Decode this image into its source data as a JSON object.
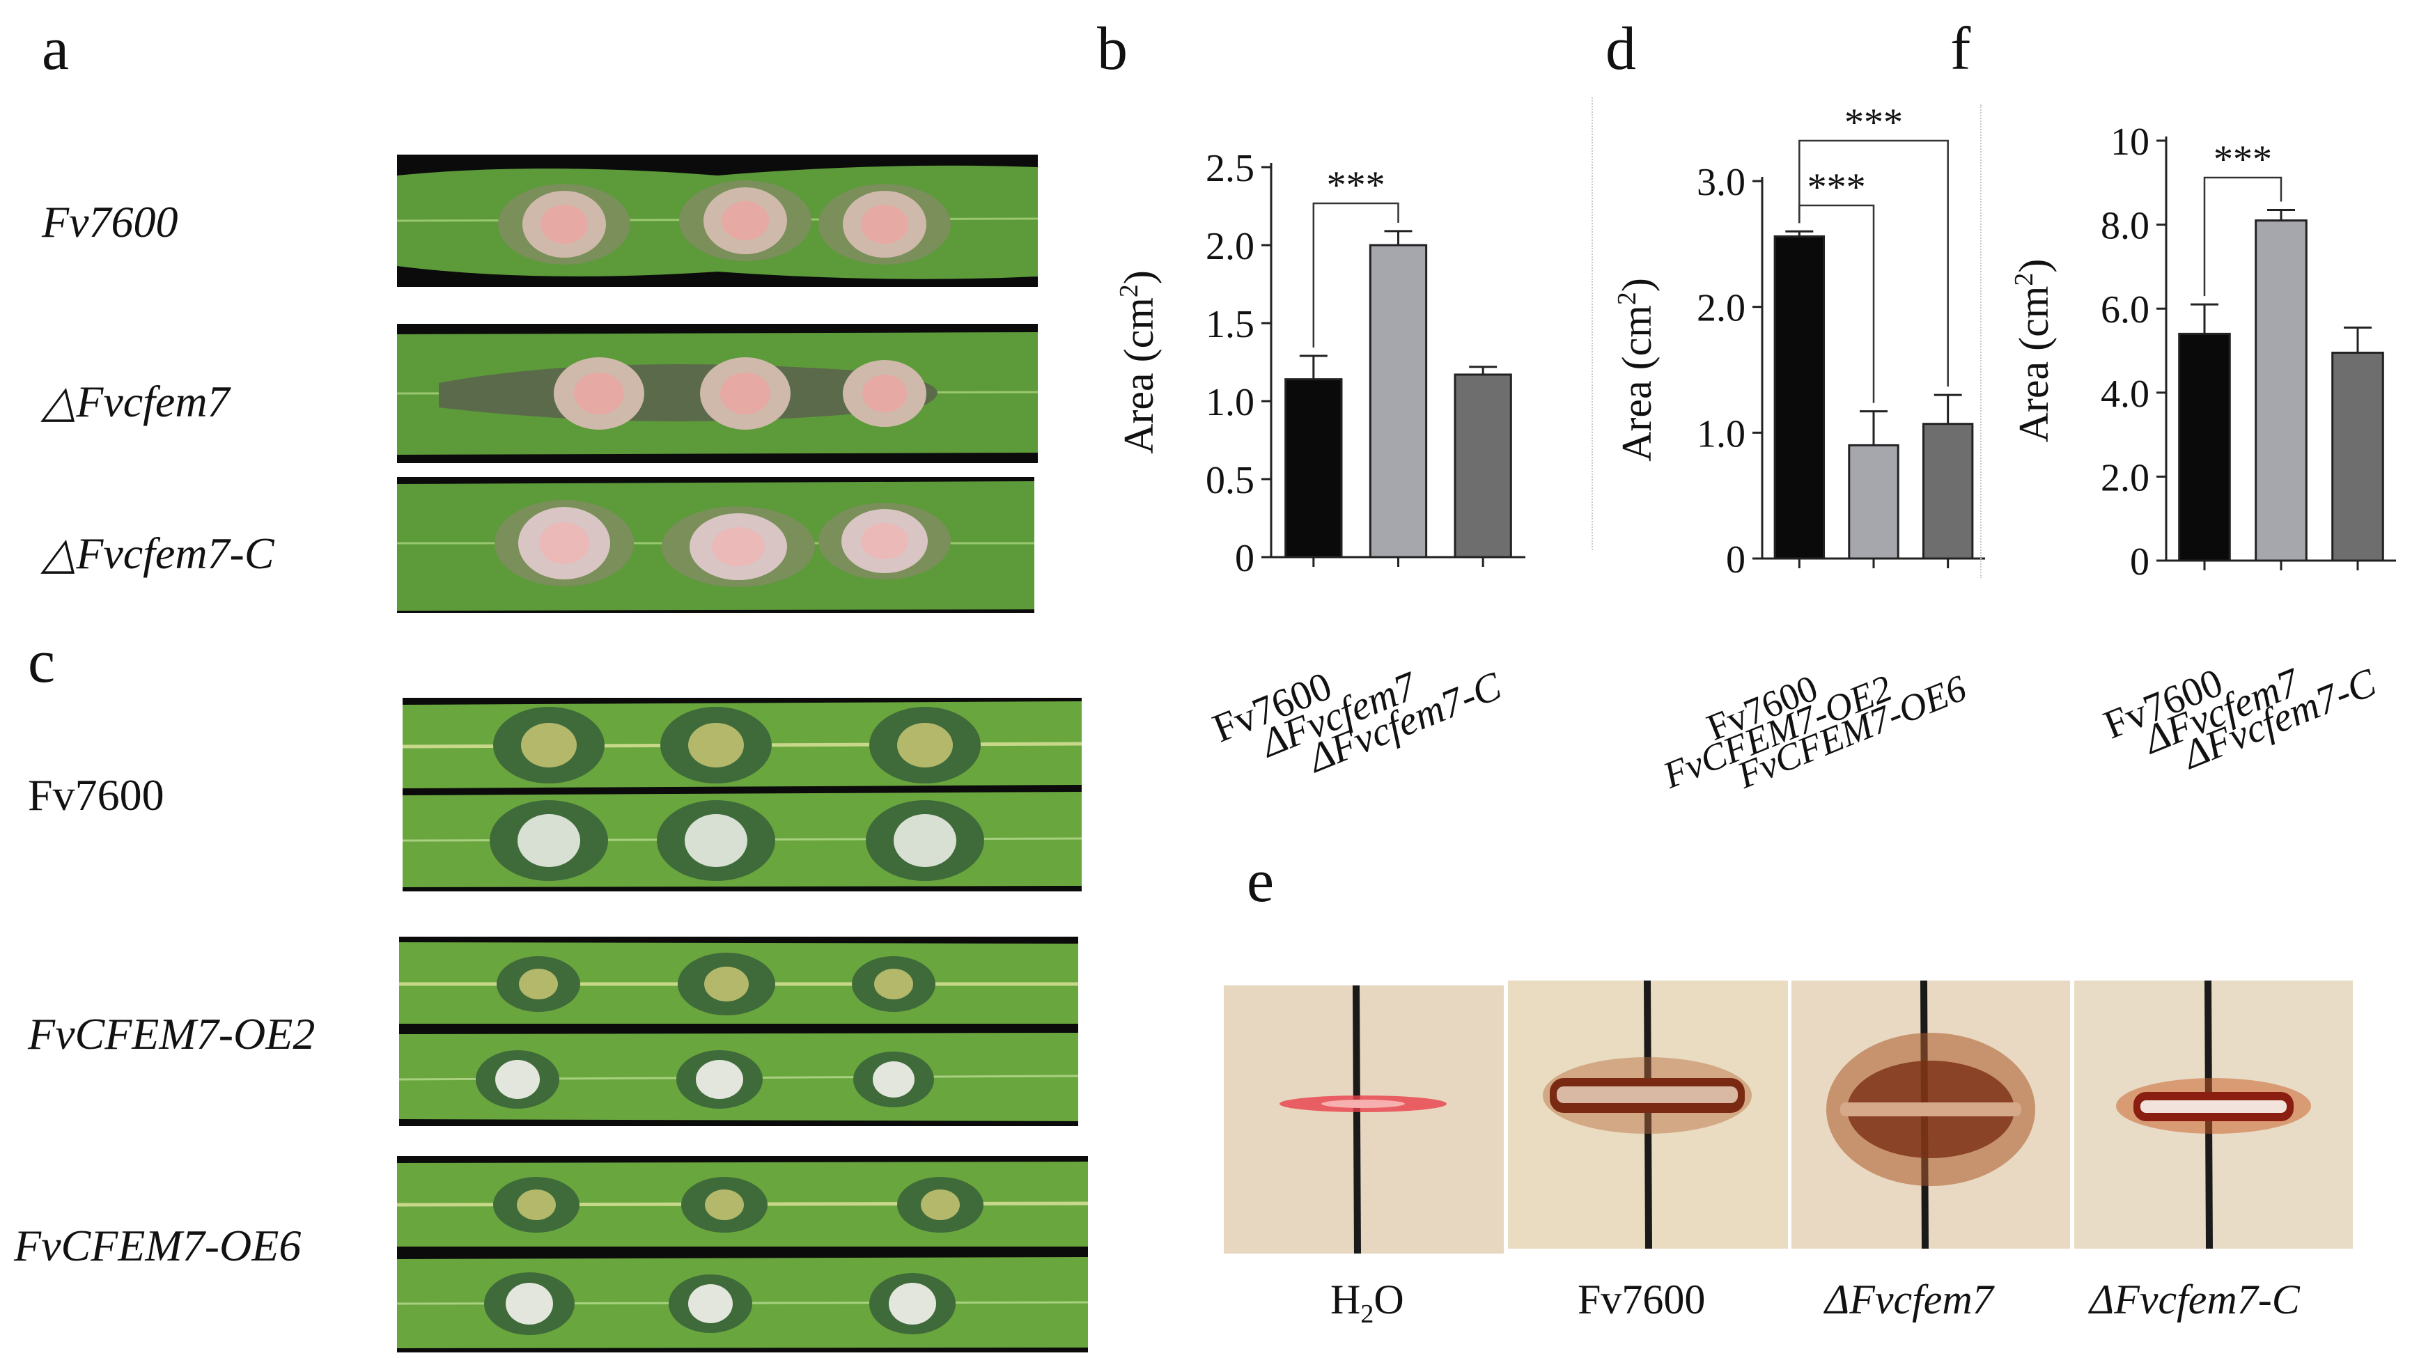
{
  "panels": {
    "a": {
      "letter": "a",
      "rows": [
        {
          "label": "Fv7600"
        },
        {
          "label": "△Fvcfem7"
        },
        {
          "label": "△Fvcfem7-C"
        }
      ]
    },
    "c": {
      "letter": "c",
      "rows": [
        {
          "label": "Fv7600"
        },
        {
          "label": "FvCFEM7-OE2"
        },
        {
          "label": "FvCFEM7-OE6"
        }
      ]
    },
    "e": {
      "letter": "e",
      "captions": [
        {
          "pre": "H",
          "sub": "2",
          "post": "O"
        },
        {
          "text": "Fv7600"
        },
        {
          "text": "ΔFvcfem7"
        },
        {
          "text": "ΔFvcfem7-C"
        }
      ]
    }
  },
  "chart_data": [
    {
      "panel": "b",
      "type": "bar",
      "ylabel_pre": "Area (cm",
      "ylabel_sup": "2",
      "ylabel_post": ")",
      "ylim": [
        0,
        2.5
      ],
      "yticks": [
        "0",
        "0.5",
        "1.0",
        "1.5",
        "2.0",
        "2.5"
      ],
      "ytick_values": [
        0,
        0.5,
        1.0,
        1.5,
        2.0,
        2.5
      ],
      "categories": [
        "Fv7600",
        "ΔFvcfem7",
        "ΔFvcfem7-C"
      ],
      "values": [
        1.14,
        2.0,
        1.17
      ],
      "errors": [
        0.15,
        0.09,
        0.05
      ],
      "colors": [
        "#0a0a0a",
        "#a6a6ad",
        "#6e6e6e"
      ],
      "significance": [
        {
          "from": 0,
          "to": 1,
          "label": "***"
        }
      ],
      "grid": false
    },
    {
      "panel": "d",
      "type": "bar",
      "ylabel_pre": "Area (cm",
      "ylabel_sup": "2",
      "ylabel_post": ")",
      "ylim": [
        0,
        3.0
      ],
      "yticks": [
        "0",
        "1.0",
        "2.0",
        "3.0"
      ],
      "ytick_values": [
        0,
        1.0,
        2.0,
        3.0
      ],
      "categories": [
        "Fv7600",
        "FvCFEM7-OE2",
        "FvCFEM7-OE6"
      ],
      "values": [
        2.56,
        0.9,
        1.07
      ],
      "errors": [
        0.04,
        0.27,
        0.23
      ],
      "colors": [
        "#0a0a0a",
        "#a6a6ad",
        "#6e6e6e"
      ],
      "significance": [
        {
          "from": 0,
          "to": 1,
          "label": "***"
        },
        {
          "from": 0,
          "to": 2,
          "label": "***"
        }
      ],
      "grid": false
    },
    {
      "panel": "f",
      "type": "bar",
      "ylabel_pre": "Area (cm",
      "ylabel_sup": "2",
      "ylabel_post": ")",
      "ylim": [
        0,
        10
      ],
      "yticks": [
        "0",
        "2.0",
        "4.0",
        "6.0",
        "8.0",
        "10"
      ],
      "ytick_values": [
        0,
        2,
        4,
        6,
        8,
        10
      ],
      "categories": [
        "Fv7600",
        "ΔFvcfem7",
        "ΔFvcfem7-C"
      ],
      "values": [
        5.4,
        8.1,
        4.95
      ],
      "errors": [
        0.7,
        0.25,
        0.6
      ],
      "colors": [
        "#0a0a0a",
        "#a6a6ad",
        "#6e6e6e"
      ],
      "significance": [
        {
          "from": 0,
          "to": 1,
          "label": "***"
        }
      ],
      "grid": false
    }
  ]
}
